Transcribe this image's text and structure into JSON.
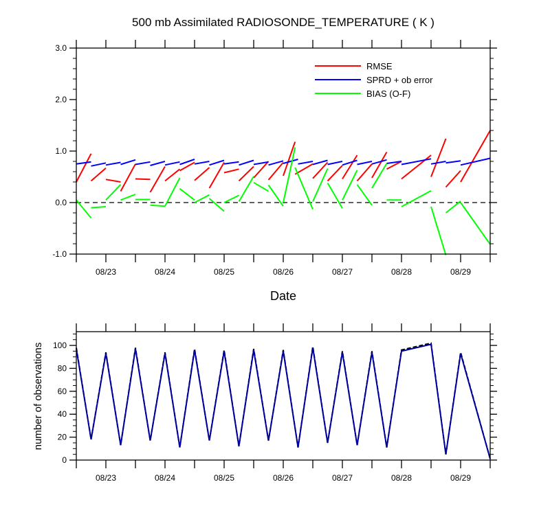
{
  "colors": {
    "rmse": "#ff0000",
    "sprd": "#0000ff",
    "bias": "#00ff00",
    "obs_used": "#0000a0",
    "obs_total": "#000000",
    "zero_line": "#000000",
    "frame": "#000000"
  },
  "chart_data": [
    {
      "type": "line",
      "title": "500 mb Assimilated RADIOSONDE_TEMPERATURE ( K )",
      "xlabel": "Date",
      "ylabel": "",
      "xlim": [
        0,
        42
      ],
      "ylim": [
        -1.0,
        3.0
      ],
      "yticks": [
        -1.0,
        0.0,
        1.0,
        2.0,
        3.0
      ],
      "yticklabels": [
        "-1.0",
        "0.0",
        "1.0",
        "2.0",
        "3.0"
      ],
      "xticks": [
        0,
        3,
        6,
        9,
        12,
        15,
        18,
        21,
        24,
        27,
        30,
        33,
        36,
        39,
        42
      ],
      "xticklabels": [
        {
          "x": 3,
          "label": "08/23"
        },
        {
          "x": 9,
          "label": "08/24"
        },
        {
          "x": 15,
          "label": "08/25"
        },
        {
          "x": 21,
          "label": "08/26"
        },
        {
          "x": 27,
          "label": "08/27"
        },
        {
          "x": 33,
          "label": "08/28"
        },
        {
          "x": 39,
          "label": "08/29"
        }
      ],
      "zero_line": true,
      "legend_position": "top-right",
      "series": [
        {
          "name": "RMSE",
          "segments": [
            [
              [
                0,
                0.4
              ],
              [
                1.5,
                0.95
              ]
            ],
            [
              [
                1.5,
                0.42
              ],
              [
                3,
                0.67
              ]
            ],
            [
              [
                3,
                0.45
              ],
              [
                4.5,
                0.4
              ]
            ],
            [
              [
                4.5,
                0.22
              ],
              [
                6,
                0.75
              ]
            ],
            [
              [
                6,
                0.46
              ],
              [
                7.5,
                0.45
              ]
            ],
            [
              [
                7.5,
                0.2
              ],
              [
                9,
                0.7
              ]
            ],
            [
              [
                9,
                0.42
              ],
              [
                10.5,
                0.65
              ]
            ],
            [
              [
                10.5,
                0.62
              ],
              [
                12,
                0.78
              ]
            ],
            [
              [
                12,
                0.43
              ],
              [
                13.5,
                0.68
              ]
            ],
            [
              [
                13.5,
                0.28
              ],
              [
                15,
                0.78
              ]
            ],
            [
              [
                15,
                0.58
              ],
              [
                16.5,
                0.65
              ]
            ],
            [
              [
                16.5,
                0.42
              ],
              [
                18,
                0.7
              ]
            ],
            [
              [
                18,
                0.48
              ],
              [
                19.5,
                0.8
              ]
            ],
            [
              [
                19.5,
                0.44
              ],
              [
                21,
                0.78
              ]
            ],
            [
              [
                21,
                0.52
              ],
              [
                22.2,
                1.18
              ]
            ],
            [
              [
                22.2,
                0.55
              ],
              [
                24,
                0.75
              ]
            ],
            [
              [
                24,
                0.47
              ],
              [
                25.5,
                0.78
              ]
            ],
            [
              [
                25.5,
                0.42
              ],
              [
                27,
                0.72
              ]
            ],
            [
              [
                27,
                0.46
              ],
              [
                28.5,
                0.92
              ]
            ],
            [
              [
                28.5,
                0.42
              ],
              [
                30,
                0.75
              ]
            ],
            [
              [
                30,
                0.48
              ],
              [
                31.5,
                0.98
              ]
            ],
            [
              [
                31.5,
                0.65
              ],
              [
                33,
                0.8
              ]
            ],
            [
              [
                33,
                0.46
              ],
              [
                36,
                0.92
              ]
            ],
            [
              [
                36,
                0.5
              ],
              [
                37.5,
                1.24
              ]
            ],
            [
              [
                37.5,
                0.3
              ],
              [
                39,
                0.62
              ]
            ],
            [
              [
                39,
                0.4
              ],
              [
                42,
                1.4
              ]
            ]
          ]
        },
        {
          "name": "SPRD + ob error",
          "segments": [
            [
              [
                0,
                0.75
              ],
              [
                1.5,
                0.79
              ]
            ],
            [
              [
                1.5,
                0.71
              ],
              [
                3,
                0.77
              ]
            ],
            [
              [
                3,
                0.73
              ],
              [
                4.5,
                0.78
              ]
            ],
            [
              [
                4.5,
                0.74
              ],
              [
                6,
                0.83
              ]
            ],
            [
              [
                6,
                0.74
              ],
              [
                7.5,
                0.79
              ]
            ],
            [
              [
                7.5,
                0.72
              ],
              [
                9,
                0.8
              ]
            ],
            [
              [
                9,
                0.73
              ],
              [
                10.5,
                0.79
              ]
            ],
            [
              [
                10.5,
                0.74
              ],
              [
                12,
                0.84
              ]
            ],
            [
              [
                12,
                0.75
              ],
              [
                13.5,
                0.8
              ]
            ],
            [
              [
                13.5,
                0.73
              ],
              [
                15,
                0.82
              ]
            ],
            [
              [
                15,
                0.75
              ],
              [
                16.5,
                0.79
              ]
            ],
            [
              [
                16.5,
                0.73
              ],
              [
                18,
                0.82
              ]
            ],
            [
              [
                18,
                0.74
              ],
              [
                19.5,
                0.79
              ]
            ],
            [
              [
                19.5,
                0.73
              ],
              [
                21,
                0.81
              ]
            ],
            [
              [
                21,
                0.76
              ],
              [
                22.5,
                0.84
              ]
            ],
            [
              [
                22.5,
                0.75
              ],
              [
                24,
                0.8
              ]
            ],
            [
              [
                24,
                0.74
              ],
              [
                25.5,
                0.82
              ]
            ],
            [
              [
                25.5,
                0.74
              ],
              [
                27,
                0.8
              ]
            ],
            [
              [
                27,
                0.73
              ],
              [
                28.5,
                0.82
              ]
            ],
            [
              [
                28.5,
                0.74
              ],
              [
                30,
                0.8
              ]
            ],
            [
              [
                30,
                0.75
              ],
              [
                31.5,
                0.83
              ]
            ],
            [
              [
                31.5,
                0.76
              ],
              [
                33,
                0.8
              ]
            ],
            [
              [
                33,
                0.74
              ],
              [
                36,
                0.85
              ]
            ],
            [
              [
                36,
                0.75
              ],
              [
                37.5,
                0.8
              ]
            ],
            [
              [
                37.5,
                0.77
              ],
              [
                39,
                0.81
              ]
            ],
            [
              [
                39,
                0.73
              ],
              [
                42,
                0.86
              ]
            ]
          ]
        },
        {
          "name": "BIAS (O-F)",
          "segments": [
            [
              [
                0,
                0.05
              ],
              [
                1.5,
                -0.3
              ]
            ],
            [
              [
                1.5,
                -0.1
              ],
              [
                3,
                -0.08
              ]
            ],
            [
              [
                3,
                0.05
              ],
              [
                4.5,
                0.35
              ]
            ],
            [
              [
                4.5,
                0.05
              ],
              [
                6,
                0.16
              ]
            ],
            [
              [
                6,
                0.06
              ],
              [
                7.5,
                0.06
              ]
            ],
            [
              [
                7.5,
                -0.05
              ],
              [
                9,
                -0.07
              ]
            ],
            [
              [
                9,
                -0.07
              ],
              [
                10.5,
                0.48
              ]
            ],
            [
              [
                10.5,
                0.27
              ],
              [
                12,
                0.05
              ]
            ],
            [
              [
                12,
                0.0
              ],
              [
                13.5,
                0.15
              ]
            ],
            [
              [
                13.5,
                0.08
              ],
              [
                15,
                -0.17
              ]
            ],
            [
              [
                15,
                0.0
              ],
              [
                16.5,
                0.14
              ]
            ],
            [
              [
                16.5,
                0.02
              ],
              [
                18,
                0.51
              ]
            ],
            [
              [
                18,
                0.39
              ],
              [
                19.5,
                0.22
              ]
            ],
            [
              [
                19.5,
                0.34
              ],
              [
                21,
                -0.07
              ]
            ],
            [
              [
                21,
                0.0
              ],
              [
                22.2,
                1.07
              ]
            ],
            [
              [
                22.2,
                0.68
              ],
              [
                24,
                -0.13
              ]
            ],
            [
              [
                24,
                0.02
              ],
              [
                25.5,
                0.66
              ]
            ],
            [
              [
                25.5,
                0.38
              ],
              [
                27,
                -0.11
              ]
            ],
            [
              [
                27,
                0.05
              ],
              [
                28.5,
                0.63
              ]
            ],
            [
              [
                28.5,
                0.35
              ],
              [
                30,
                -0.05
              ]
            ],
            [
              [
                30,
                0.28
              ],
              [
                31.5,
                0.76
              ]
            ],
            [
              [
                31.5,
                0.05
              ],
              [
                33,
                0.05
              ]
            ],
            [
              [
                33,
                -0.08
              ],
              [
                36,
                0.23
              ]
            ],
            [
              [
                36,
                -0.08
              ],
              [
                37.5,
                -1.02
              ]
            ],
            [
              [
                37.5,
                -0.2
              ],
              [
                39,
                0.03
              ]
            ],
            [
              [
                39,
                0.0
              ],
              [
                42,
                -0.81
              ]
            ]
          ]
        }
      ]
    },
    {
      "type": "line",
      "title": "",
      "xlabel": "",
      "ylabel": "number of observations",
      "xlim": [
        0,
        42
      ],
      "ylim": [
        0,
        112
      ],
      "yticks": [
        0,
        20,
        40,
        60,
        80,
        100
      ],
      "yticklabels": [
        "0",
        "20",
        "40",
        "60",
        "80",
        "100"
      ],
      "xticks": [
        0,
        3,
        6,
        9,
        12,
        15,
        18,
        21,
        24,
        27,
        30,
        33,
        36,
        39,
        42
      ],
      "xticklabels": [
        {
          "x": 3,
          "label": "08/23"
        },
        {
          "x": 9,
          "label": "08/24"
        },
        {
          "x": 15,
          "label": "08/25"
        },
        {
          "x": 21,
          "label": "08/26"
        },
        {
          "x": 27,
          "label": "08/27"
        },
        {
          "x": 33,
          "label": "08/28"
        },
        {
          "x": 39,
          "label": "08/29"
        }
      ],
      "series": [
        {
          "name": "obs_total",
          "dashed": true,
          "x": [
            0,
            1.5,
            3,
            4.5,
            6,
            7.5,
            9,
            10.5,
            12,
            13.5,
            15,
            16.5,
            18,
            19.5,
            21,
            22.5,
            24,
            25.5,
            27,
            28.5,
            30,
            31.5,
            33,
            36,
            37.5,
            39,
            42
          ],
          "y": [
            98,
            18,
            94,
            13,
            98,
            17,
            94,
            11,
            97,
            17,
            96,
            12,
            97,
            17,
            96,
            11,
            99,
            15,
            95,
            13,
            95,
            11,
            96,
            102,
            5,
            94,
            1
          ]
        },
        {
          "name": "obs_used",
          "dashed": false,
          "x": [
            0,
            1.5,
            3,
            4.5,
            6,
            7.5,
            9,
            10.5,
            12,
            13.5,
            15,
            16.5,
            18,
            19.5,
            21,
            22.5,
            24,
            25.5,
            27,
            28.5,
            30,
            31.5,
            33,
            36,
            37.5,
            39,
            42
          ],
          "y": [
            97,
            18,
            93,
            13,
            97,
            17,
            93,
            11,
            96,
            17,
            95,
            12,
            96,
            17,
            95,
            11,
            98,
            15,
            94,
            13,
            94,
            11,
            95,
            101,
            5,
            93,
            1
          ]
        }
      ]
    }
  ]
}
